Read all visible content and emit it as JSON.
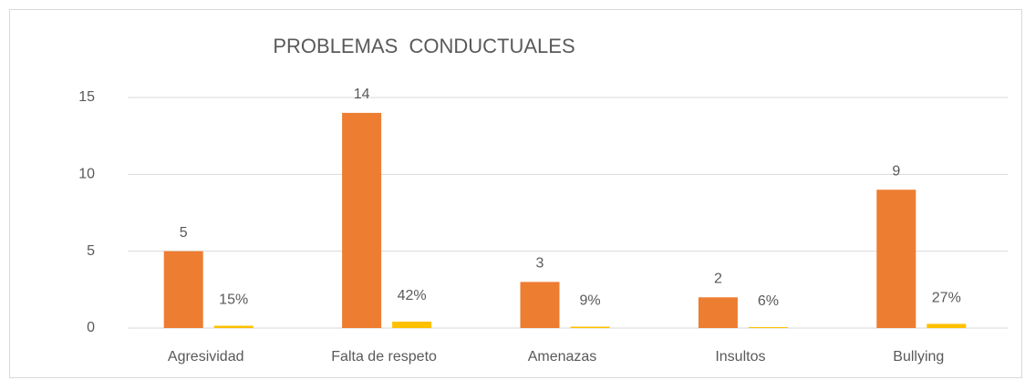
{
  "chart_data": {
    "type": "bar",
    "title": "PROBLEMAS  CONDUCTUALES",
    "categories": [
      "Agresividad",
      "Falta de respeto",
      "Amenazas",
      "Insultos",
      "Bullying"
    ],
    "series": [
      {
        "color": "#ED7D31",
        "values": [
          5,
          14,
          3,
          2,
          9
        ]
      },
      {
        "color": "#FFC000",
        "values": [
          0.15,
          0.42,
          0.09,
          0.06,
          0.27
        ],
        "value_labels": [
          "15%",
          "42%",
          "9%",
          "6%",
          "27%"
        ]
      }
    ],
    "ylim": [
      0,
      15
    ],
    "yticks": [
      0,
      5,
      10,
      15
    ],
    "grid": true
  }
}
